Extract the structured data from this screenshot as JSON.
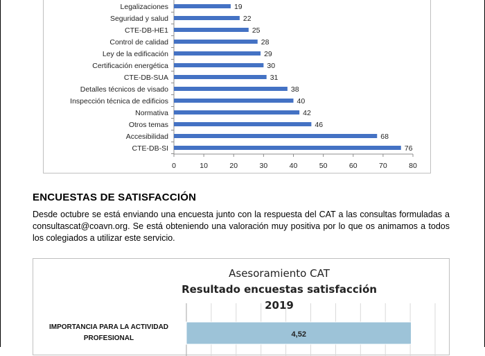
{
  "chart_data": [
    {
      "type": "bar",
      "orientation": "horizontal",
      "categories": [
        "Legalizaciones",
        "Seguridad y salud",
        "CTE-DB-HE1",
        "Control de calidad",
        "Ley de la edificación",
        "Certificación energética",
        "CTE-DB-SUA",
        "Detalles técnicos de visado",
        "Inspección técnica de edificios",
        "Normativa",
        "Otros temas",
        "Accesibilidad",
        "CTE-DB-SI"
      ],
      "values": [
        19,
        22,
        25,
        28,
        29,
        30,
        31,
        38,
        40,
        42,
        46,
        68,
        76
      ],
      "x_ticks": [
        "0",
        "10",
        "20",
        "30",
        "40",
        "50",
        "60",
        "70",
        "80"
      ],
      "xlim": [
        0,
        80
      ],
      "bar_color": "#4472c4",
      "grid": false
    },
    {
      "type": "bar",
      "orientation": "horizontal",
      "title_line1": "Asesoramiento CAT",
      "title_line2": "Resultado encuestas satisfacción 2019",
      "categories": [
        "IMPORTANCIA PARA LA ACTIVIDAD PROFESIONAL"
      ],
      "values": [
        4.52
      ],
      "value_labels": [
        "4,52"
      ],
      "xlim": [
        0,
        5
      ],
      "bar_color": "#9dc3d8",
      "grid": true
    }
  ],
  "section": {
    "title": "ENCUESTAS DE SATISFACCIÓN",
    "paragraph": "Desde octubre se está enviando una encuesta junto con la respuesta del CAT a las consultas formuladas a consultascat@coavn.org. Se está obteniendo una valoración muy positiva por lo que os animamos a todos los colegiados a utilizar este servicio."
  }
}
